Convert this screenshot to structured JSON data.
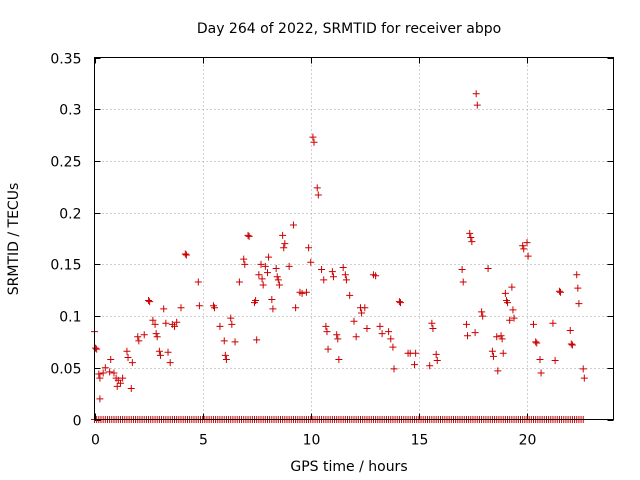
{
  "chart_data": {
    "type": "scatter",
    "title": "Day 264 of 2022, SRMTID for receiver abpo",
    "xlabel": "GPS time / hours",
    "ylabel": "SRMTID / TECUs",
    "xlim": [
      0,
      24
    ],
    "ylim": [
      0,
      0.35
    ],
    "xticks": [
      0,
      5,
      10,
      15,
      20
    ],
    "yticks": [
      0,
      0.05,
      0.1,
      0.15,
      0.2,
      0.25,
      0.3,
      0.35
    ],
    "xtick_labels": [
      "0",
      "5",
      "10",
      "15",
      "20"
    ],
    "ytick_labels": [
      "0",
      "0.05",
      "0.1",
      "0.15",
      "0.2",
      "0.25",
      "0.3",
      "0.35"
    ],
    "grid": true,
    "marker": "+",
    "marker_color": "#cc0000",
    "zero_baseline": {
      "x_start": 0.0,
      "x_end": 22.6,
      "step": 0.1,
      "y": 0
    },
    "series": [
      {
        "name": "SRMTID",
        "points": [
          [
            0.0,
            0.085
          ],
          [
            0.05,
            0.069
          ],
          [
            0.1,
            0.068
          ],
          [
            0.2,
            0.044
          ],
          [
            0.25,
            0.04
          ],
          [
            0.25,
            0.02
          ],
          [
            0.4,
            0.045
          ],
          [
            0.5,
            0.05
          ],
          [
            0.7,
            0.046
          ],
          [
            0.75,
            0.058
          ],
          [
            0.9,
            0.045
          ],
          [
            1.0,
            0.04
          ],
          [
            1.05,
            0.032
          ],
          [
            1.1,
            0.038
          ],
          [
            1.2,
            0.035
          ],
          [
            1.3,
            0.04
          ],
          [
            1.5,
            0.066
          ],
          [
            1.55,
            0.06
          ],
          [
            1.7,
            0.03
          ],
          [
            1.75,
            0.055
          ],
          [
            2.0,
            0.08
          ],
          [
            2.05,
            0.076
          ],
          [
            2.3,
            0.082
          ],
          [
            2.5,
            0.115
          ],
          [
            2.55,
            0.114
          ],
          [
            2.7,
            0.096
          ],
          [
            2.8,
            0.092
          ],
          [
            2.85,
            0.083
          ],
          [
            2.9,
            0.08
          ],
          [
            3.0,
            0.066
          ],
          [
            3.05,
            0.062
          ],
          [
            3.2,
            0.107
          ],
          [
            3.3,
            0.093
          ],
          [
            3.4,
            0.065
          ],
          [
            3.5,
            0.055
          ],
          [
            3.6,
            0.092
          ],
          [
            3.7,
            0.09
          ],
          [
            3.8,
            0.094
          ],
          [
            4.0,
            0.108
          ],
          [
            4.2,
            0.16
          ],
          [
            4.25,
            0.159
          ],
          [
            4.8,
            0.133
          ],
          [
            4.85,
            0.11
          ],
          [
            5.5,
            0.11
          ],
          [
            5.55,
            0.108
          ],
          [
            5.8,
            0.09
          ],
          [
            6.0,
            0.076
          ],
          [
            6.05,
            0.062
          ],
          [
            6.1,
            0.058
          ],
          [
            6.3,
            0.098
          ],
          [
            6.35,
            0.092
          ],
          [
            6.5,
            0.075
          ],
          [
            6.7,
            0.133
          ],
          [
            6.9,
            0.155
          ],
          [
            6.95,
            0.15
          ],
          [
            7.1,
            0.178
          ],
          [
            7.15,
            0.177
          ],
          [
            7.4,
            0.113
          ],
          [
            7.45,
            0.115
          ],
          [
            7.5,
            0.077
          ],
          [
            7.6,
            0.14
          ],
          [
            7.7,
            0.15
          ],
          [
            7.75,
            0.136
          ],
          [
            7.8,
            0.13
          ],
          [
            7.9,
            0.148
          ],
          [
            8.0,
            0.142
          ],
          [
            8.05,
            0.157
          ],
          [
            8.2,
            0.116
          ],
          [
            8.25,
            0.107
          ],
          [
            8.4,
            0.146
          ],
          [
            8.45,
            0.138
          ],
          [
            8.5,
            0.135
          ],
          [
            8.55,
            0.13
          ],
          [
            8.7,
            0.178
          ],
          [
            8.75,
            0.166
          ],
          [
            8.8,
            0.17
          ],
          [
            9.0,
            0.148
          ],
          [
            9.2,
            0.188
          ],
          [
            9.3,
            0.108
          ],
          [
            9.5,
            0.123
          ],
          [
            9.6,
            0.122
          ],
          [
            9.8,
            0.123
          ],
          [
            9.9,
            0.166
          ],
          [
            10.0,
            0.152
          ],
          [
            10.1,
            0.273
          ],
          [
            10.15,
            0.268
          ],
          [
            10.3,
            0.224
          ],
          [
            10.35,
            0.217
          ],
          [
            10.5,
            0.145
          ],
          [
            10.6,
            0.135
          ],
          [
            10.7,
            0.09
          ],
          [
            10.75,
            0.085
          ],
          [
            10.8,
            0.068
          ],
          [
            11.0,
            0.143
          ],
          [
            11.05,
            0.138
          ],
          [
            11.2,
            0.082
          ],
          [
            11.25,
            0.078
          ],
          [
            11.3,
            0.058
          ],
          [
            11.5,
            0.147
          ],
          [
            11.6,
            0.14
          ],
          [
            11.65,
            0.135
          ],
          [
            11.8,
            0.12
          ],
          [
            12.0,
            0.095
          ],
          [
            12.1,
            0.08
          ],
          [
            12.3,
            0.108
          ],
          [
            12.35,
            0.103
          ],
          [
            12.5,
            0.108
          ],
          [
            12.6,
            0.088
          ],
          [
            12.9,
            0.14
          ],
          [
            13.0,
            0.139
          ],
          [
            13.2,
            0.09
          ],
          [
            13.3,
            0.083
          ],
          [
            13.6,
            0.085
          ],
          [
            13.7,
            0.078
          ],
          [
            13.8,
            0.07
          ],
          [
            13.85,
            0.049
          ],
          [
            14.1,
            0.114
          ],
          [
            14.15,
            0.113
          ],
          [
            14.5,
            0.064
          ],
          [
            14.6,
            0.064
          ],
          [
            14.8,
            0.053
          ],
          [
            14.85,
            0.064
          ],
          [
            15.5,
            0.052
          ],
          [
            15.6,
            0.093
          ],
          [
            15.65,
            0.088
          ],
          [
            15.8,
            0.063
          ],
          [
            15.85,
            0.057
          ],
          [
            17.0,
            0.145
          ],
          [
            17.05,
            0.133
          ],
          [
            17.2,
            0.092
          ],
          [
            17.25,
            0.081
          ],
          [
            17.35,
            0.18
          ],
          [
            17.4,
            0.176
          ],
          [
            17.45,
            0.172
          ],
          [
            17.6,
            0.084
          ],
          [
            17.65,
            0.315
          ],
          [
            17.7,
            0.304
          ],
          [
            17.9,
            0.104
          ],
          [
            17.95,
            0.1
          ],
          [
            18.2,
            0.146
          ],
          [
            18.4,
            0.066
          ],
          [
            18.45,
            0.061
          ],
          [
            18.6,
            0.08
          ],
          [
            18.65,
            0.047
          ],
          [
            18.8,
            0.081
          ],
          [
            18.85,
            0.078
          ],
          [
            18.9,
            0.064
          ],
          [
            19.0,
            0.122
          ],
          [
            19.05,
            0.115
          ],
          [
            19.1,
            0.113
          ],
          [
            19.2,
            0.096
          ],
          [
            19.3,
            0.128
          ],
          [
            19.35,
            0.106
          ],
          [
            19.4,
            0.098
          ],
          [
            19.8,
            0.168
          ],
          [
            19.85,
            0.165
          ],
          [
            20.0,
            0.171
          ],
          [
            20.05,
            0.158
          ],
          [
            20.3,
            0.092
          ],
          [
            20.4,
            0.075
          ],
          [
            20.45,
            0.074
          ],
          [
            20.6,
            0.058
          ],
          [
            20.65,
            0.045
          ],
          [
            21.2,
            0.093
          ],
          [
            21.3,
            0.057
          ],
          [
            21.5,
            0.124
          ],
          [
            21.55,
            0.123
          ],
          [
            22.0,
            0.086
          ],
          [
            22.05,
            0.073
          ],
          [
            22.1,
            0.072
          ],
          [
            22.3,
            0.14
          ],
          [
            22.35,
            0.127
          ],
          [
            22.4,
            0.112
          ],
          [
            22.6,
            0.049
          ],
          [
            22.65,
            0.04
          ]
        ]
      }
    ]
  }
}
